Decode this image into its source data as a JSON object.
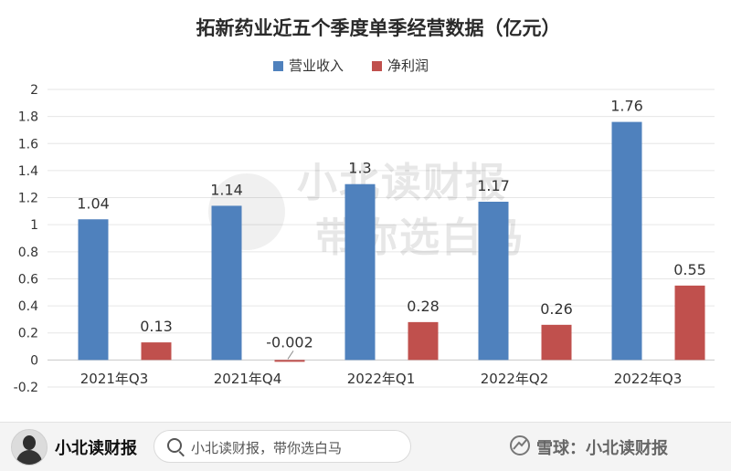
{
  "chart_data": {
    "type": "bar",
    "title": "拓新药业近五个季度单季经营数据（亿元）",
    "categories": [
      "2021年Q3",
      "2021年Q4",
      "2022年Q1",
      "2022年Q2",
      "2022年Q3"
    ],
    "series": [
      {
        "name": "营业收入",
        "color": "#4f81bd",
        "values": [
          1.04,
          1.14,
          1.3,
          1.17,
          1.76
        ],
        "labels": [
          "1.04",
          "1.14",
          "1.3",
          "1.17",
          "1.76"
        ]
      },
      {
        "name": "净利润",
        "color": "#c0504d",
        "values": [
          0.13,
          -0.002,
          0.28,
          0.26,
          0.55
        ],
        "labels": [
          "0.13",
          "-0.002",
          "0.28",
          "0.26",
          "0.55"
        ]
      }
    ],
    "ylim": [
      -0.2,
      2
    ],
    "yticks": [
      "-0.2",
      "0",
      "0.2",
      "0.4",
      "0.6",
      "0.8",
      "1",
      "1.2",
      "1.4",
      "1.6",
      "1.8",
      "2"
    ],
    "grid": true,
    "legend": "top-center"
  },
  "watermark": {
    "line1": "小北读财报",
    "line2": "带你选白马"
  },
  "footer": {
    "brand": "小北读财报",
    "search_text": "小北读财报，带你选白马",
    "source": "雪球：小北读财报",
    "search_icon": "search-icon",
    "xueqiu_icon": "xueqiu-logo-icon"
  }
}
